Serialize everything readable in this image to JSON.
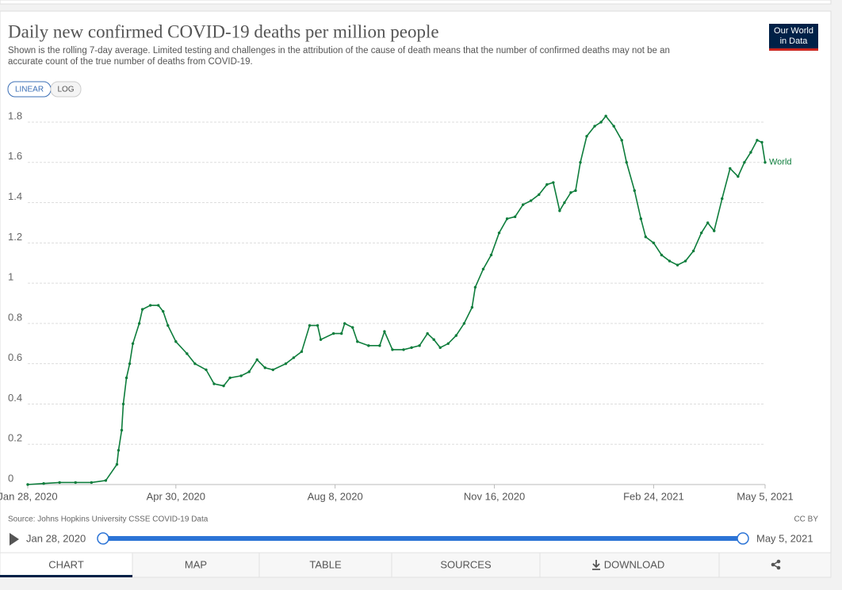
{
  "header": {
    "title": "Daily new confirmed COVID-19 deaths per million people",
    "subtitle_lines": [
      "Shown is the rolling 7-day average. Limited testing and challenges in the attribution of the cause of death means that the number of confirmed deaths may not be an",
      "accurate count of the true number of deaths from COVID-19."
    ],
    "logo_lines": [
      "Our World",
      "in Data"
    ]
  },
  "scale_buttons": [
    "LINEAR",
    "LOG"
  ],
  "chart_data": {
    "type": "line",
    "x": [
      "2020-01-28",
      "2020-02-07",
      "2020-02-17",
      "2020-02-27",
      "2020-03-08",
      "2020-03-17",
      "2020-03-24",
      "2020-03-25",
      "2020-03-27",
      "2020-03-28",
      "2020-03-30",
      "2020-04-01",
      "2020-04-03",
      "2020-04-07",
      "2020-04-09",
      "2020-04-14",
      "2020-04-19",
      "2020-04-22",
      "2020-04-25",
      "2020-04-30",
      "2020-05-07",
      "2020-05-12",
      "2020-05-19",
      "2020-05-24",
      "2020-05-30",
      "2020-06-03",
      "2020-06-10",
      "2020-06-15",
      "2020-06-20",
      "2020-06-25",
      "2020-06-30",
      "2020-07-08",
      "2020-07-13",
      "2020-07-18",
      "2020-07-23",
      "2020-07-28",
      "2020-07-30",
      "2020-08-07",
      "2020-08-12",
      "2020-08-14",
      "2020-08-19",
      "2020-08-22",
      "2020-08-29",
      "2020-09-05",
      "2020-09-08",
      "2020-09-13",
      "2020-09-20",
      "2020-09-25",
      "2020-09-30",
      "2020-10-05",
      "2020-10-09",
      "2020-10-13",
      "2020-10-18",
      "2020-10-23",
      "2020-10-28",
      "2020-11-02",
      "2020-11-04",
      "2020-11-09",
      "2020-11-14",
      "2020-11-19",
      "2020-11-24",
      "2020-11-29",
      "2020-12-04",
      "2020-12-09",
      "2020-12-14",
      "2020-12-19",
      "2020-12-23",
      "2020-12-27",
      "2020-12-30",
      "2021-01-03",
      "2021-01-06",
      "2021-01-09",
      "2021-01-13",
      "2021-01-18",
      "2021-01-22",
      "2021-01-25",
      "2021-01-30",
      "2021-02-04",
      "2021-02-07",
      "2021-02-12",
      "2021-02-16",
      "2021-02-19",
      "2021-02-24",
      "2021-03-01",
      "2021-03-06",
      "2021-03-11",
      "2021-03-16",
      "2021-03-21",
      "2021-03-26",
      "2021-03-30",
      "2021-04-03",
      "2021-04-08",
      "2021-04-13",
      "2021-04-18",
      "2021-04-22",
      "2021-04-26",
      "2021-04-30",
      "2021-05-03",
      "2021-05-05"
    ],
    "series": [
      {
        "name": "World",
        "color": "#0e7d3c",
        "values": [
          0,
          0.005,
          0.01,
          0.01,
          0.01,
          0.02,
          0.1,
          0.17,
          0.27,
          0.4,
          0.53,
          0.6,
          0.7,
          0.8,
          0.87,
          0.89,
          0.89,
          0.86,
          0.79,
          0.71,
          0.65,
          0.6,
          0.57,
          0.5,
          0.49,
          0.53,
          0.54,
          0.56,
          0.62,
          0.58,
          0.57,
          0.6,
          0.63,
          0.66,
          0.79,
          0.79,
          0.72,
          0.75,
          0.75,
          0.8,
          0.78,
          0.71,
          0.69,
          0.69,
          0.76,
          0.67,
          0.67,
          0.68,
          0.69,
          0.75,
          0.72,
          0.68,
          0.7,
          0.74,
          0.8,
          0.88,
          0.98,
          1.07,
          1.14,
          1.25,
          1.32,
          1.33,
          1.39,
          1.41,
          1.44,
          1.49,
          1.5,
          1.36,
          1.4,
          1.45,
          1.46,
          1.6,
          1.73,
          1.78,
          1.8,
          1.83,
          1.78,
          1.71,
          1.6,
          1.46,
          1.32,
          1.23,
          1.2,
          1.14,
          1.11,
          1.09,
          1.11,
          1.16,
          1.25,
          1.3,
          1.26,
          1.42,
          1.57,
          1.53,
          1.6,
          1.65,
          1.71,
          1.7,
          1.6
        ]
      }
    ],
    "xlim": [
      "2020-01-28",
      "2021-05-05"
    ],
    "xticks": [
      {
        "value": "2020-01-28",
        "label": "Jan 28, 2020"
      },
      {
        "value": "2020-04-30",
        "label": "Apr 30, 2020"
      },
      {
        "value": "2020-08-08",
        "label": "Aug 8, 2020"
      },
      {
        "value": "2020-11-16",
        "label": "Nov 16, 2020"
      },
      {
        "value": "2021-02-24",
        "label": "Feb 24, 2021"
      },
      {
        "value": "2021-05-05",
        "label": "May 5, 2021"
      }
    ],
    "ylim": [
      0,
      1.8
    ],
    "yticks": [
      0,
      0.2,
      0.4,
      0.6,
      0.8,
      1,
      1.2,
      1.4,
      1.6,
      1.8
    ],
    "grid": true
  },
  "footer": {
    "source": "Source: Johns Hopkins University CSSE COVID-19 Data",
    "license": "CC BY"
  },
  "timeline": {
    "start": "Jan 28, 2020",
    "end": "May 5, 2021"
  },
  "tabs": [
    "CHART",
    "MAP",
    "TABLE",
    "SOURCES",
    "DOWNLOAD"
  ]
}
